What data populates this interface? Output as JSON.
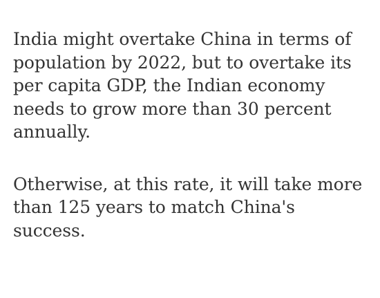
{
  "paragraphs": [
    {
      "lines": [
        "India might overtake China in terms of",
        "population by 2022, but to overtake its",
        "per capita GDP, the Indian economy",
        "needs to grow more than 30 percent",
        "annually."
      ]
    },
    {
      "lines": [
        "Otherwise, at this rate, it will take more",
        "than 125 years to match China's",
        "success."
      ]
    }
  ],
  "colors": {
    "text": "#333333",
    "background": "#ffffff"
  }
}
